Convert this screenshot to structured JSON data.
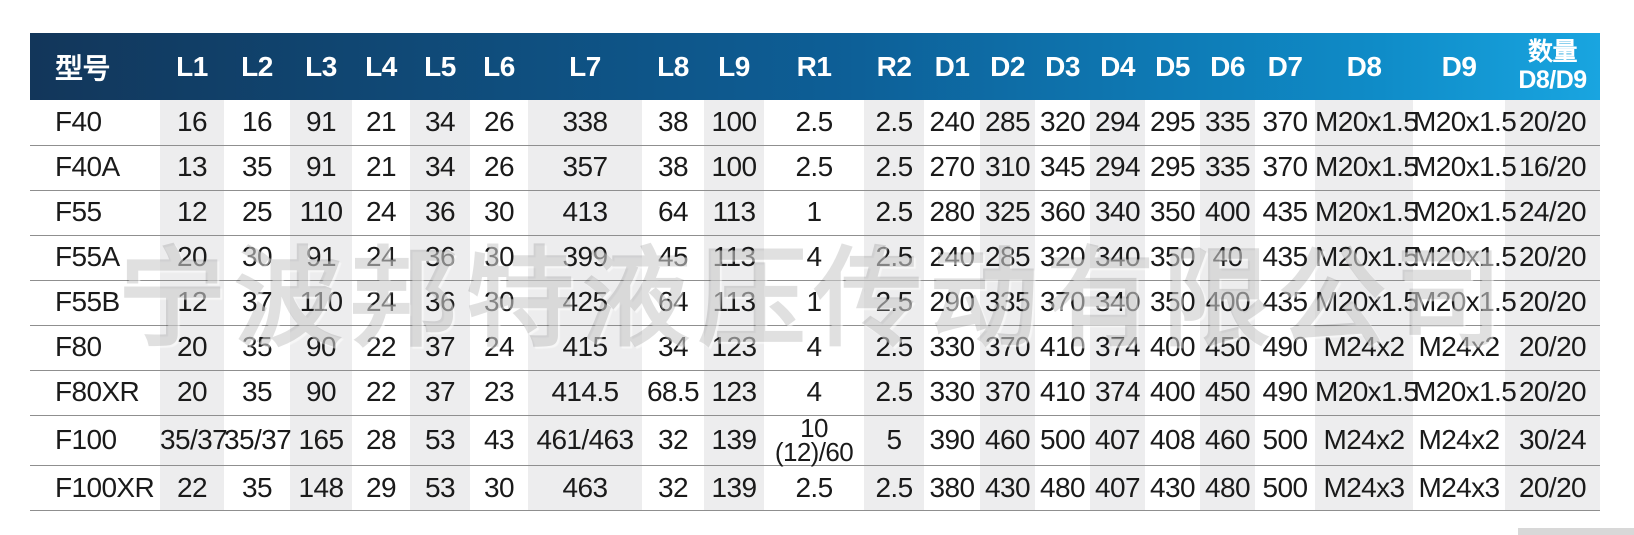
{
  "watermark": "宁波邦特液压传动有限公司",
  "colors": {
    "header_gradient_left": "#12365a",
    "header_gradient_mid": "#0d5f97",
    "header_gradient_right": "#19a5e0",
    "column_shade": "#ededee",
    "row_line": "#8f8f8f"
  },
  "table": {
    "columns": [
      "型号",
      "L1",
      "L2",
      "L3",
      "L4",
      "L5",
      "L6",
      "L7",
      "L8",
      "L9",
      "R1",
      "R2",
      "D1",
      "D2",
      "D3",
      "D4",
      "D5",
      "D6",
      "D7",
      "D8",
      "D9",
      "数量\nD8/D9"
    ],
    "rows": [
      [
        "F40",
        "16",
        "16",
        "91",
        "21",
        "34",
        "26",
        "338",
        "38",
        "100",
        "2.5",
        "2.5",
        "240",
        "285",
        "320",
        "294",
        "295",
        "335",
        "370",
        "M20x1.5",
        "M20x1.5",
        "20/20"
      ],
      [
        "F40A",
        "13",
        "35",
        "91",
        "21",
        "34",
        "26",
        "357",
        "38",
        "100",
        "2.5",
        "2.5",
        "270",
        "310",
        "345",
        "294",
        "295",
        "335",
        "370",
        "M20x1.5",
        "M20x1.5",
        "16/20"
      ],
      [
        "F55",
        "12",
        "25",
        "110",
        "24",
        "36",
        "30",
        "413",
        "64",
        "113",
        "1",
        "2.5",
        "280",
        "325",
        "360",
        "340",
        "350",
        "400",
        "435",
        "M20x1.5",
        "M20x1.5",
        "24/20"
      ],
      [
        "F55A",
        "20",
        "30",
        "91",
        "24",
        "36",
        "30",
        "399",
        "45",
        "113",
        "4",
        "2.5",
        "240",
        "285",
        "320",
        "340",
        "350",
        "40",
        "435",
        "M20x1.5",
        "M20x1.5",
        "20/20"
      ],
      [
        "F55B",
        "12",
        "37",
        "110",
        "24",
        "36",
        "30",
        "425",
        "64",
        "113",
        "1",
        "2.5",
        "290",
        "335",
        "370",
        "340",
        "350",
        "400",
        "435",
        "M20x1.5",
        "M20x1.5",
        "20/20"
      ],
      [
        "F80",
        "20",
        "35",
        "90",
        "22",
        "37",
        "24",
        "415",
        "34",
        "123",
        "4",
        "2.5",
        "330",
        "370",
        "410",
        "374",
        "400",
        "450",
        "490",
        "M24x2",
        "M24x2",
        "20/20"
      ],
      [
        "F80XR",
        "20",
        "35",
        "90",
        "22",
        "37",
        "23",
        "414.5",
        "68.5",
        "123",
        "4",
        "2.5",
        "330",
        "370",
        "410",
        "374",
        "400",
        "450",
        "490",
        "M20x1.5",
        "M20x1.5",
        "20/20"
      ],
      [
        "F100",
        "35/37",
        "35/37",
        "165",
        "28",
        "53",
        "43",
        "461/463",
        "32",
        "139",
        "10\n(12)/60",
        "5",
        "390",
        "460",
        "500",
        "407",
        "408",
        "460",
        "500",
        "M24x2",
        "M24x2",
        "30/24"
      ],
      [
        "F100XR",
        "22",
        "35",
        "148",
        "29",
        "53",
        "30",
        "463",
        "32",
        "139",
        "2.5",
        "2.5",
        "380",
        "430",
        "480",
        "407",
        "430",
        "480",
        "500",
        "M24x3",
        "M24x3",
        "20/20"
      ]
    ]
  }
}
